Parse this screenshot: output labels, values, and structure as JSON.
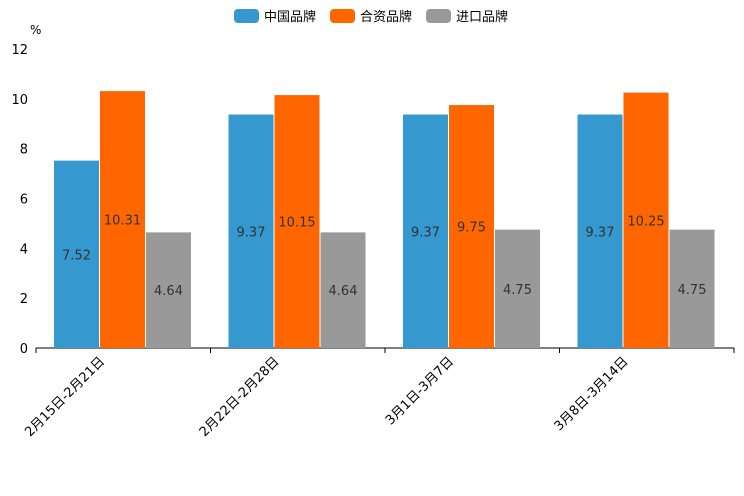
{
  "chart_data": {
    "type": "bar",
    "title": "",
    "xlabel": "",
    "ylabel": "%",
    "ylim": [
      0,
      12
    ],
    "yticks": [
      0,
      2,
      4,
      6,
      8,
      10,
      12
    ],
    "grid": false,
    "legend_position": "top-center",
    "categories": [
      "2月15日-2月21日",
      "2月22日-2月28日",
      "3月1日-3月7日",
      "3月8日-3月14日"
    ],
    "series": [
      {
        "name": "中国品牌",
        "color": "#3598ce",
        "values": [
          7.52,
          9.37,
          9.37,
          9.37
        ]
      },
      {
        "name": "合资品牌",
        "color": "#ff6600",
        "values": [
          10.31,
          10.15,
          9.75,
          10.25
        ]
      },
      {
        "name": "进口品牌",
        "color": "#999999",
        "values": [
          4.64,
          4.64,
          4.75,
          4.75
        ]
      }
    ]
  }
}
